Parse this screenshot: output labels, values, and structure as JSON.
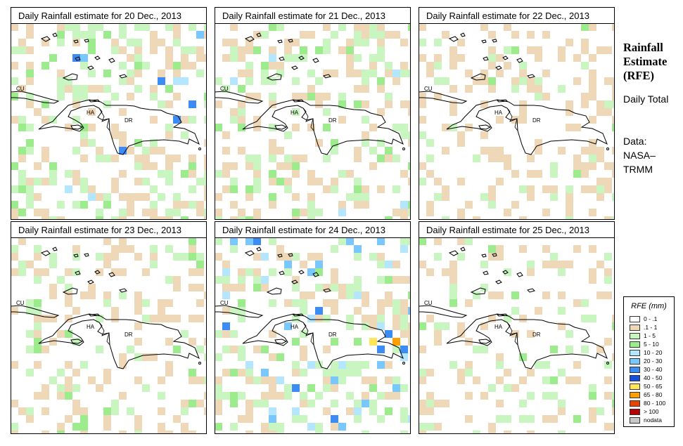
{
  "panels": [
    {
      "title": "Daily Rainfall estimate for  20 Dec., 2013",
      "seed": 3,
      "density": {
        "beige": 0.2,
        "green": 0.22,
        "blue": 0.02
      }
    },
    {
      "title": "Daily Rainfall estimate for  21 Dec., 2013",
      "seed": 11,
      "density": {
        "beige": 0.2,
        "green": 0.2,
        "blue": 0.01
      }
    },
    {
      "title": "Daily Rainfall estimate for  22 Dec., 2013",
      "seed": 17,
      "density": {
        "beige": 0.26,
        "green": 0.06,
        "blue": 0.0
      }
    },
    {
      "title": "Daily Rainfall estimate for  23 Dec., 2013",
      "seed": 23,
      "density": {
        "beige": 0.18,
        "green": 0.13,
        "blue": 0.0
      }
    },
    {
      "title": "Daily Rainfall estimate for  24 Dec., 2013",
      "seed": 31,
      "density": {
        "beige": 0.15,
        "green": 0.18,
        "blue": 0.07
      }
    },
    {
      "title": "Daily Rainfall estimate for  25 Dec., 2013",
      "seed": 41,
      "density": {
        "beige": 0.14,
        "green": 0.14,
        "blue": 0.0
      }
    }
  ],
  "map_labels": {
    "cuba": "CU",
    "haiti": "HA",
    "dominican_republic": "DR"
  },
  "side": {
    "title": "Rainfall Estimate (RFE)",
    "period_label": "Daily Total",
    "data_label": "Data:",
    "source": "NASA–TRMM"
  },
  "legend": {
    "title": "RFE (mm)",
    "items": [
      {
        "label": "0 - .1",
        "color": "#ffffff"
      },
      {
        "label": ".1 - 1",
        "color": "#eed8b8"
      },
      {
        "label": "1 - 5",
        "color": "#c8f5c0"
      },
      {
        "label": "5 - 10",
        "color": "#9ceb8c"
      },
      {
        "label": "10 - 20",
        "color": "#b4e6ff"
      },
      {
        "label": "20 - 30",
        "color": "#78c8ff"
      },
      {
        "label": "30 - 40",
        "color": "#3c8cf5"
      },
      {
        "label": "40 - 50",
        "color": "#1450dc"
      },
      {
        "label": "50 - 65",
        "color": "#ffe65a"
      },
      {
        "label": "65 - 80",
        "color": "#ffa000"
      },
      {
        "label": "80 - 100",
        "color": "#e64600"
      },
      {
        "label": "> 100",
        "color": "#b40000"
      },
      {
        "label": "nodata",
        "color": "#c8c8c8"
      }
    ]
  }
}
